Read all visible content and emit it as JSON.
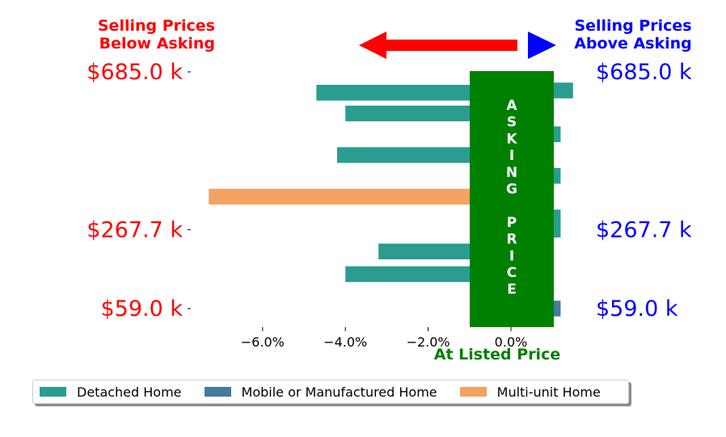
{
  "header": {
    "left_line1": "Selling Prices",
    "left_line2": "Below Asking",
    "right_line1": "Selling Prices",
    "right_line2": "Above Asking",
    "left_color": "#ff0000",
    "right_color": "#0000ff"
  },
  "arrows": {
    "left_color": "#ff0000",
    "right_color": "#0000ff"
  },
  "asking_box": {
    "text_top": "ASKING",
    "text_bottom": "PRICE",
    "color": "#008000"
  },
  "chart_data": {
    "type": "bar",
    "orientation": "horizontal",
    "xlabel": "At Listed Price",
    "xlim": [
      -7.5,
      1.5
    ],
    "xticks": [
      -6.0,
      -4.0,
      -2.0,
      0.0
    ],
    "xtick_labels": [
      "−6.0%",
      "−4.0%",
      "−2.0%",
      "0.0%"
    ],
    "ytick_labels_left": [
      "$685.0 k",
      "$267.7 k",
      "$59.0 k"
    ],
    "ytick_labels_right": [
      "$685.0 k",
      "$267.7 k",
      "$59.0 k"
    ],
    "ytick_values": [
      685.0,
      267.7,
      59.0
    ],
    "bars": [
      {
        "price_k": 685.0,
        "value": 1.5,
        "category": "Detached Home"
      },
      {
        "price_k": 629.9,
        "value": -4.7,
        "category": "Detached Home"
      },
      {
        "price_k": 575.0,
        "value": -4.0,
        "category": "Detached Home"
      },
      {
        "price_k": 520.0,
        "value": 1.2,
        "category": "Detached Home"
      },
      {
        "price_k": 465.0,
        "value": -4.2,
        "category": "Detached Home"
      },
      {
        "price_k": 410.0,
        "value": 1.2,
        "category": "Detached Home"
      },
      {
        "price_k": 355.0,
        "value": -7.3,
        "category": "Multi-unit Home"
      },
      {
        "price_k": 300.0,
        "value": 1.2,
        "category": "Detached Home"
      },
      {
        "price_k": 267.7,
        "value": 1.2,
        "category": "Detached Home"
      },
      {
        "price_k": 210.0,
        "value": -3.2,
        "category": "Detached Home"
      },
      {
        "price_k": 150.0,
        "value": -4.0,
        "category": "Detached Home"
      },
      {
        "price_k": 59.0,
        "value": 1.2,
        "category": "Mobile or Manufactured Home"
      }
    ],
    "legend": [
      {
        "label": "Detached Home",
        "color": "#2a9d8f"
      },
      {
        "label": "Mobile or Manufactured Home",
        "color": "#457b9d"
      },
      {
        "label": "Multi-unit Home",
        "color": "#f4a261"
      }
    ],
    "legend_position": "bottom"
  }
}
